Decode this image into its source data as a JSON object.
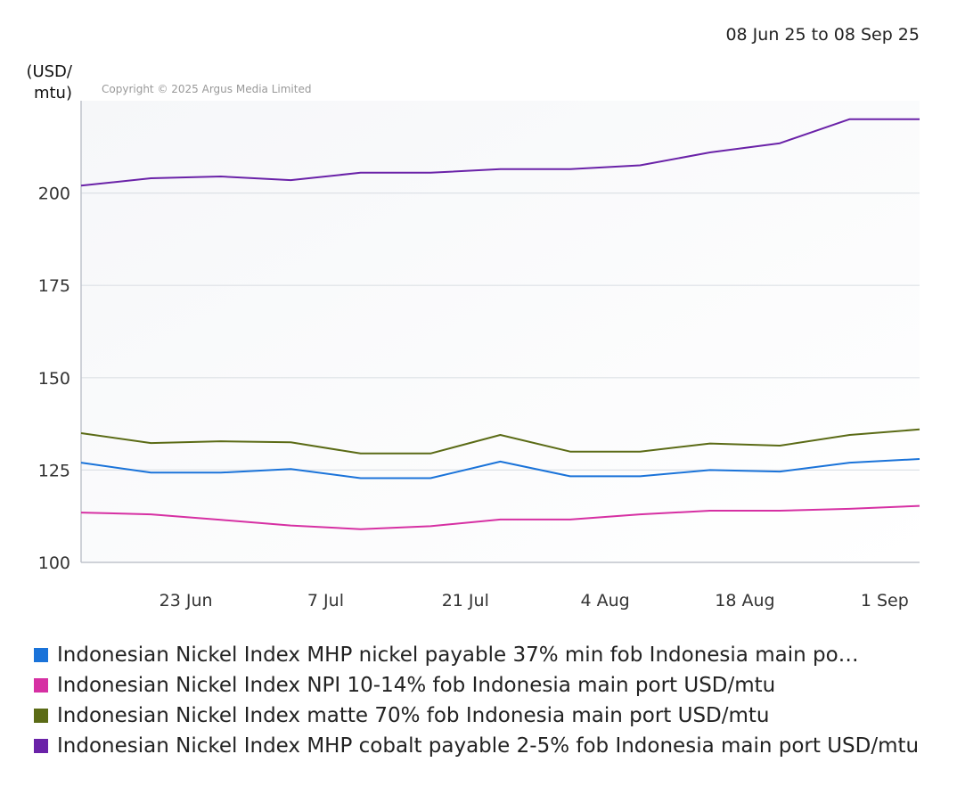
{
  "date_range": "08 Jun 25 to 08 Sep 25",
  "copyright": "Copyright © 2025 Argus Media Limited",
  "chart_data": {
    "type": "line",
    "ylabel_lines": [
      "(USD/",
      "mtu)"
    ],
    "ylim": [
      100,
      225
    ],
    "yticks": [
      100,
      125,
      150,
      175,
      200
    ],
    "xlim": [
      0,
      12
    ],
    "xticks": [
      {
        "label": "23 Jun",
        "x": 1.5
      },
      {
        "label": "7 Jul",
        "x": 3.5
      },
      {
        "label": "21 Jul",
        "x": 5.5
      },
      {
        "label": "4 Aug",
        "x": 7.5
      },
      {
        "label": "18 Aug",
        "x": 9.5
      },
      {
        "label": "1 Sep",
        "x": 11.5
      }
    ],
    "x": [
      0,
      1,
      2,
      3,
      4,
      5,
      6,
      7,
      8,
      9,
      10,
      11,
      12
    ],
    "series": [
      {
        "name": "Indonesian Nickel Index MHP nickel payable 37% min fob Indonesia main po…",
        "color": "#1a73d9",
        "values": [
          127,
          124.3,
          124.3,
          125.3,
          122.8,
          122.8,
          127.3,
          123.3,
          123.3,
          125,
          124.6,
          127,
          128
        ]
      },
      {
        "name": "Indonesian Nickel Index NPI 10-14% fob Indonesia main port USD/mtu",
        "color": "#d630a3",
        "values": [
          113.5,
          113,
          111.5,
          110,
          109,
          109.8,
          111.6,
          111.6,
          113,
          114,
          114,
          114.5,
          115.3
        ]
      },
      {
        "name": "Indonesian Nickel Index matte 70% fob Indonesia main port USD/mtu",
        "color": "#5b6b16",
        "values": [
          135,
          132.3,
          132.8,
          132.5,
          129.5,
          129.5,
          134.5,
          130,
          130,
          132.2,
          131.6,
          134.5,
          136
        ]
      },
      {
        "name": "Indonesian Nickel Index MHP cobalt payable 2-5% fob Indonesia main port USD/mtu",
        "color": "#6a22a8",
        "values": [
          202,
          204,
          204.5,
          203.5,
          205.5,
          205.5,
          206.5,
          206.5,
          207.5,
          211,
          213.5,
          220,
          220
        ]
      }
    ]
  }
}
